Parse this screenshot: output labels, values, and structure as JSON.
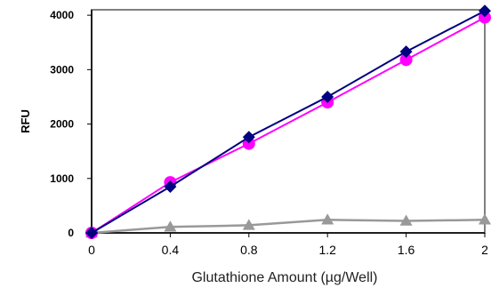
{
  "chart_data": {
    "type": "line",
    "title": "",
    "xlabel": "Glutathione Amount (µg/Well)",
    "ylabel": "RFU",
    "x": [
      0,
      0.4,
      0.8,
      1.2,
      1.6,
      2
    ],
    "x_tick_labels": [
      "0",
      "0.4",
      "0.8",
      "1.2",
      "1.6",
      "2"
    ],
    "y_tick_labels": [
      "0",
      "1000",
      "2000",
      "3000",
      "4000"
    ],
    "y_ticks": [
      0,
      1000,
      2000,
      3000,
      4000
    ],
    "xlim": [
      0,
      2
    ],
    "ylim": [
      0,
      4100
    ],
    "grid": false,
    "legend": "none",
    "series": [
      {
        "color": "#000080",
        "marker": "diamond",
        "values": [
          0,
          850,
          1760,
          2500,
          3330,
          4080
        ]
      },
      {
        "color": "#ff00ff",
        "marker": "circle",
        "values": [
          0,
          930,
          1640,
          2400,
          3180,
          3960
        ]
      },
      {
        "color": "#999999",
        "marker": "triangle",
        "values": [
          0,
          110,
          140,
          240,
          220,
          240
        ]
      }
    ]
  }
}
